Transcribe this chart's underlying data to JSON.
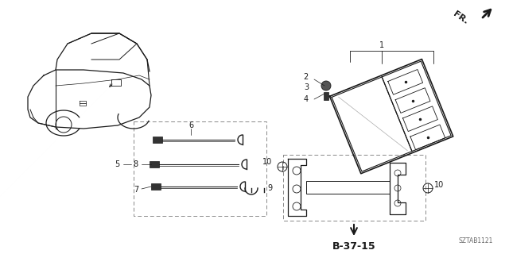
{
  "bg_color": "#ffffff",
  "line_color": "#1a1a1a",
  "gray_color": "#888888",
  "text_color": "#1a1a1a",
  "diagram_id": "SZTAB1121",
  "fr_label": "FR.",
  "ref_label": "B-37-15"
}
